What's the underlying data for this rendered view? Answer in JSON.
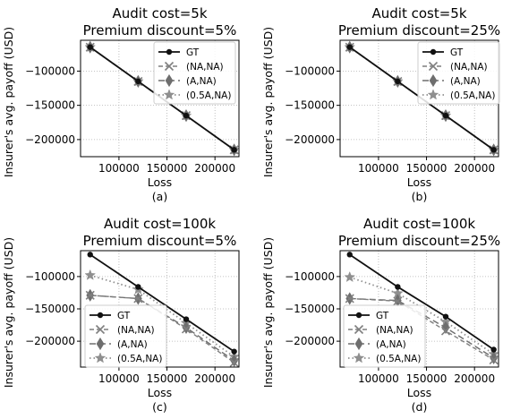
{
  "chart_data": [
    {
      "type": "line",
      "title": [
        "Audit cost=5k",
        "Premium discount=5%"
      ],
      "caption": "(a)",
      "xlabel": "Loss",
      "ylabel": "Insurer's avg. payoff (USD)",
      "xlim": [
        60000,
        225000
      ],
      "ylim": [
        -225000,
        -55000
      ],
      "xticks": [
        100000,
        150000,
        200000
      ],
      "yticks": [
        -100000,
        -150000,
        -200000
      ],
      "grid": true,
      "legend": "top-right",
      "series": [
        {
          "name": "GT",
          "x": [
            70000,
            120000,
            170000,
            220000
          ],
          "y": [
            -65000,
            -115000,
            -165000,
            -215000
          ]
        },
        {
          "name": "(NA,NA)",
          "x": [
            70000,
            120000,
            170000,
            220000
          ],
          "y": [
            -65000,
            -115000,
            -165000,
            -215000
          ]
        },
        {
          "name": "(A,NA)",
          "x": [
            70000,
            120000,
            170000,
            220000
          ],
          "y": [
            -65000,
            -115000,
            -165000,
            -215000
          ]
        },
        {
          "name": "(0.5A,NA)",
          "x": [
            70000,
            120000,
            170000,
            220000
          ],
          "y": [
            -65000,
            -115000,
            -165000,
            -215000
          ]
        }
      ]
    },
    {
      "type": "line",
      "title": [
        "Audit cost=5k",
        "Premium discount=25%"
      ],
      "caption": "(b)",
      "xlabel": "Loss",
      "ylabel": "Insurer's avg. payoff (USD)",
      "xlim": [
        60000,
        225000
      ],
      "ylim": [
        -225000,
        -55000
      ],
      "xticks": [
        100000,
        150000,
        200000
      ],
      "yticks": [
        -100000,
        -150000,
        -200000
      ],
      "grid": true,
      "legend": "top-right",
      "series": [
        {
          "name": "GT",
          "x": [
            70000,
            120000,
            170000,
            220000
          ],
          "y": [
            -65000,
            -115000,
            -165000,
            -215000
          ]
        },
        {
          "name": "(NA,NA)",
          "x": [
            70000,
            120000,
            170000,
            220000
          ],
          "y": [
            -65000,
            -115000,
            -165000,
            -215000
          ]
        },
        {
          "name": "(A,NA)",
          "x": [
            70000,
            120000,
            170000,
            220000
          ],
          "y": [
            -65000,
            -115000,
            -165000,
            -215000
          ]
        },
        {
          "name": "(0.5A,NA)",
          "x": [
            70000,
            120000,
            170000,
            220000
          ],
          "y": [
            -65000,
            -115000,
            -165000,
            -215000
          ]
        }
      ]
    },
    {
      "type": "line",
      "title": [
        "Audit cost=100k",
        "Premium discount=5%"
      ],
      "caption": "(c)",
      "xlabel": "Loss",
      "ylabel": "Insurer's avg. payoff (USD)",
      "xlim": [
        60000,
        225000
      ],
      "ylim": [
        -240000,
        -60000
      ],
      "xticks": [
        100000,
        150000,
        200000
      ],
      "yticks": [
        -100000,
        -150000,
        -200000
      ],
      "grid": true,
      "legend": "bottom-left",
      "series": [
        {
          "name": "GT",
          "x": [
            70000,
            120000,
            170000,
            220000
          ],
          "y": [
            -66000,
            -116000,
            -166000,
            -216000
          ]
        },
        {
          "name": "(NA,NA)",
          "x": [
            70000,
            120000,
            170000,
            220000
          ],
          "y": [
            -129000,
            -134000,
            -181000,
            -233000
          ]
        },
        {
          "name": "(A,NA)",
          "x": [
            70000,
            120000,
            170000,
            220000
          ],
          "y": [
            -129000,
            -134000,
            -179000,
            -230000
          ]
        },
        {
          "name": "(0.5A,NA)",
          "x": [
            70000,
            120000,
            170000,
            220000
          ],
          "y": [
            -98000,
            -120000,
            -172000,
            -224000
          ]
        }
      ]
    },
    {
      "type": "line",
      "title": [
        "Audit cost=100k",
        "Premium discount=25%"
      ],
      "caption": "(d)",
      "xlabel": "Loss",
      "ylabel": "Insurer's avg. payoff (USD)",
      "xlim": [
        60000,
        225000
      ],
      "ylim": [
        -240000,
        -60000
      ],
      "xticks": [
        100000,
        150000,
        200000
      ],
      "yticks": [
        -100000,
        -150000,
        -200000
      ],
      "grid": true,
      "legend": "bottom-left",
      "series": [
        {
          "name": "GT",
          "x": [
            70000,
            120000,
            170000,
            220000
          ],
          "y": [
            -66000,
            -116000,
            -162000,
            -213000
          ]
        },
        {
          "name": "(NA,NA)",
          "x": [
            70000,
            120000,
            170000,
            220000
          ],
          "y": [
            -134000,
            -138000,
            -184000,
            -229000
          ]
        },
        {
          "name": "(A,NA)",
          "x": [
            70000,
            120000,
            170000,
            220000
          ],
          "y": [
            -134000,
            -137000,
            -179000,
            -226000
          ]
        },
        {
          "name": "(0.5A,NA)",
          "x": [
            70000,
            120000,
            170000,
            220000
          ],
          "y": [
            -101000,
            -126000,
            -170000,
            -220000
          ]
        }
      ]
    }
  ],
  "styles": {
    "GT": {
      "color": "#111111",
      "dash": "",
      "marker": "dot",
      "width": 1.8
    },
    "(NA,NA)": {
      "color": "#7f7f7f",
      "dash": "5,3",
      "marker": "x",
      "width": 1.4
    },
    "(A,NA)": {
      "color": "#6e6e6e",
      "dash": "7,4",
      "marker": "thin-diamond",
      "width": 1.4
    },
    "(0.5A,NA)": {
      "color": "#8f8f8f",
      "dash": "1.5,3",
      "marker": "star",
      "width": 1.8
    }
  }
}
